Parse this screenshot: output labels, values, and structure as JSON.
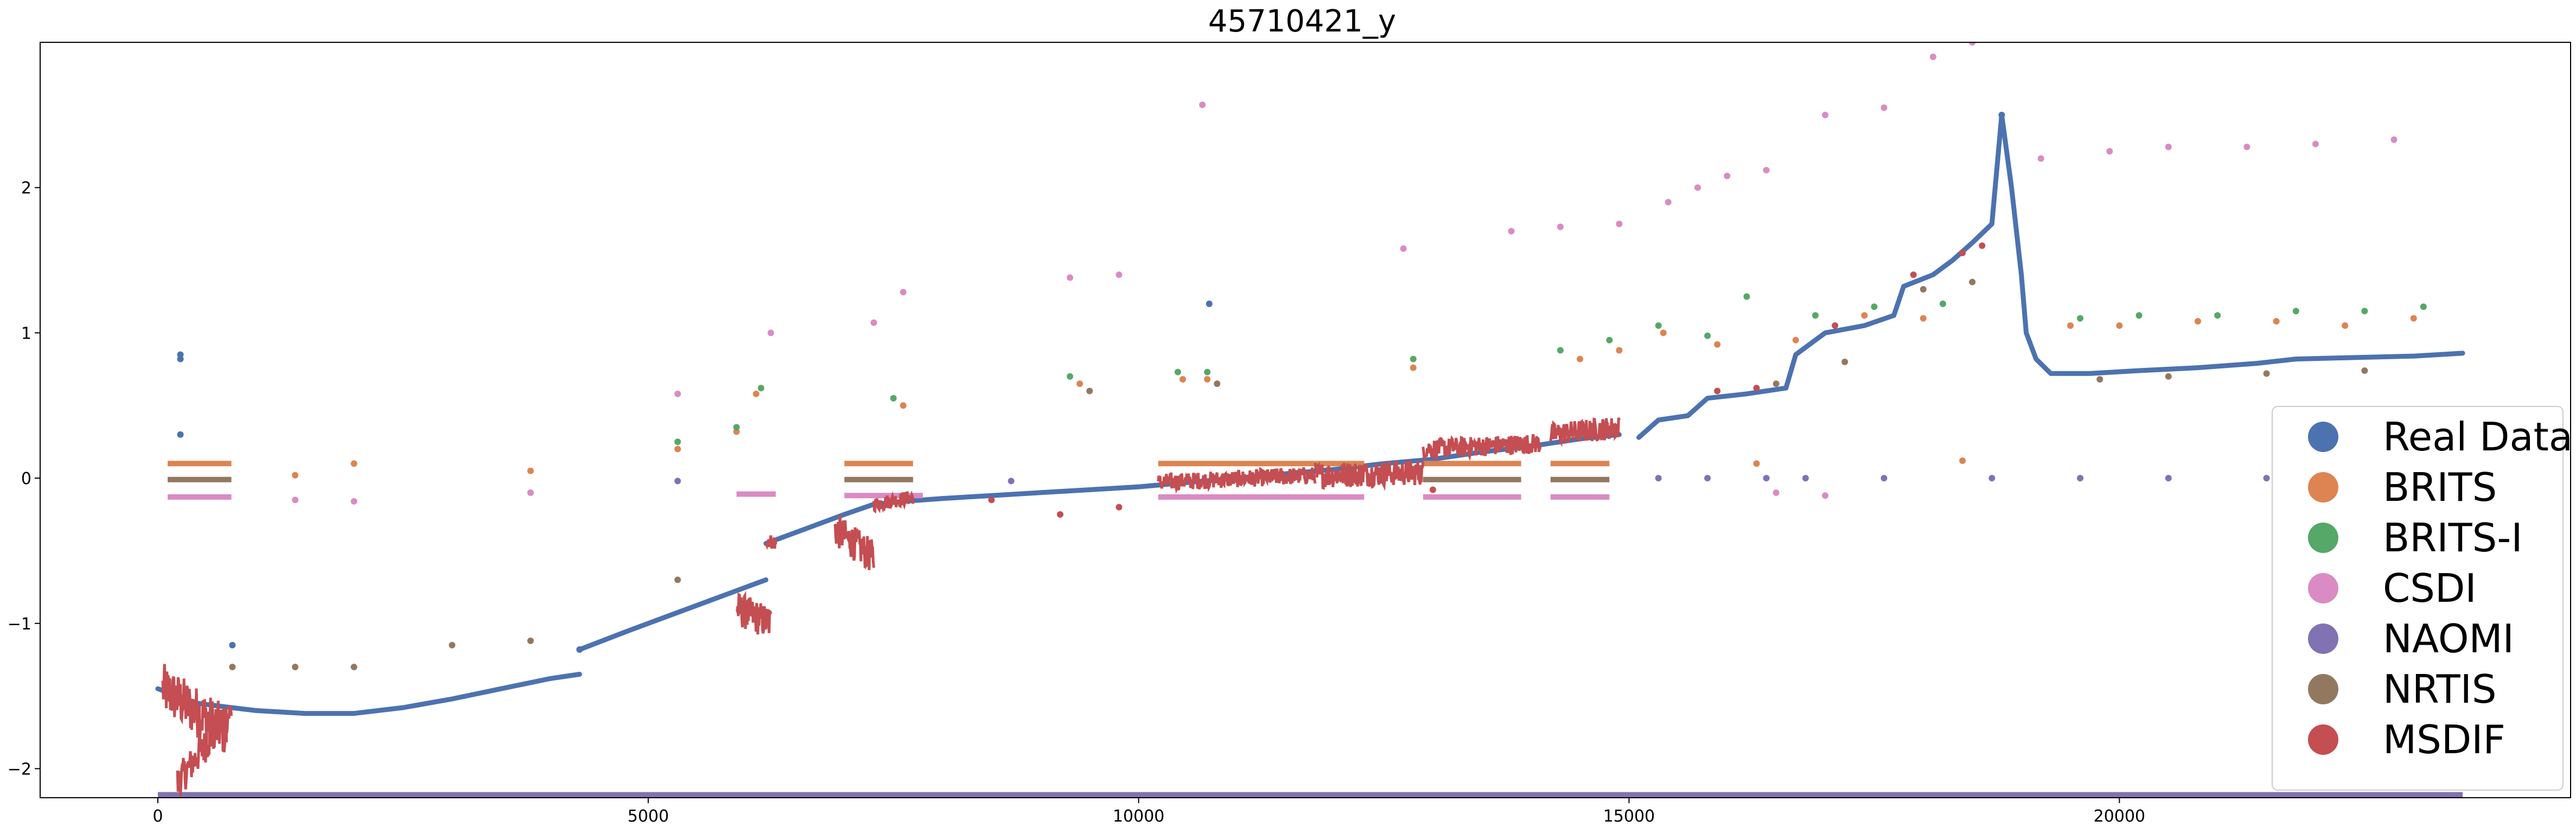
{
  "chart_data": {
    "type": "scatter",
    "title": "45710421_y",
    "xlabel": "",
    "ylabel": "",
    "xlim": [
      -1200,
      24600
    ],
    "ylim": [
      -2.2,
      3.0
    ],
    "x_ticks": [
      0,
      5000,
      10000,
      15000,
      20000
    ],
    "y_ticks": [
      -2,
      -1,
      0,
      1,
      2
    ],
    "x_tick_labels": [
      "0",
      "5000",
      "10000",
      "15000",
      "20000"
    ],
    "y_tick_labels": [
      "−2",
      "−1",
      "0",
      "1",
      "2"
    ],
    "grid": false,
    "legend_position": "lower right",
    "series": [
      {
        "name": "Real Data",
        "color": "#4c72b0",
        "segments": [
          [
            [
              0,
              -1.45
            ],
            [
              200,
              -1.5
            ],
            [
              400,
              -1.55
            ],
            [
              750,
              -1.58
            ],
            [
              1000,
              -1.6
            ],
            [
              1500,
              -1.62
            ],
            [
              2000,
              -1.62
            ],
            [
              2500,
              -1.58
            ],
            [
              3000,
              -1.52
            ],
            [
              3500,
              -1.45
            ],
            [
              4000,
              -1.38
            ],
            [
              4300,
              -1.35
            ]
          ],
          [
            [
              4300,
              -1.18
            ],
            [
              4800,
              -1.05
            ],
            [
              5200,
              -0.95
            ],
            [
              5600,
              -0.85
            ],
            [
              6000,
              -0.75
            ],
            [
              6200,
              -0.7
            ]
          ],
          [
            [
              6200,
              -0.45
            ],
            [
              6600,
              -0.35
            ],
            [
              7000,
              -0.25
            ],
            [
              7300,
              -0.18
            ],
            [
              7600,
              -0.16
            ],
            [
              8000,
              -0.14
            ],
            [
              8500,
              -0.12
            ],
            [
              9000,
              -0.1
            ],
            [
              9500,
              -0.08
            ],
            [
              10000,
              -0.06
            ],
            [
              10500,
              -0.03
            ],
            [
              11000,
              0.0
            ],
            [
              11500,
              0.03
            ],
            [
              12000,
              0.06
            ],
            [
              12500,
              0.1
            ],
            [
              13000,
              0.13
            ],
            [
              13500,
              0.18
            ],
            [
              14000,
              0.22
            ],
            [
              14500,
              0.27
            ],
            [
              14900,
              0.3
            ]
          ],
          [
            [
              15100,
              0.28
            ],
            [
              15300,
              0.4
            ],
            [
              15600,
              0.43
            ],
            [
              15800,
              0.55
            ],
            [
              16200,
              0.58
            ],
            [
              16600,
              0.62
            ],
            [
              16700,
              0.85
            ],
            [
              17000,
              1.0
            ],
            [
              17400,
              1.05
            ],
            [
              17700,
              1.12
            ],
            [
              17800,
              1.32
            ],
            [
              18100,
              1.4
            ],
            [
              18300,
              1.5
            ],
            [
              18500,
              1.62
            ],
            [
              18700,
              1.75
            ],
            [
              18800,
              2.5
            ],
            [
              18900,
              2.0
            ],
            [
              19000,
              1.4
            ],
            [
              19050,
              1.0
            ],
            [
              19150,
              0.82
            ],
            [
              19300,
              0.72
            ],
            [
              19700,
              0.72
            ],
            [
              20200,
              0.74
            ],
            [
              20800,
              0.76
            ],
            [
              21400,
              0.79
            ],
            [
              21800,
              0.82
            ],
            [
              22400,
              0.83
            ],
            [
              23000,
              0.84
            ],
            [
              23500,
              0.86
            ]
          ]
        ],
        "points": [
          [
            230,
            0.85
          ],
          [
            230,
            0.82
          ],
          [
            230,
            0.3
          ],
          [
            760,
            -1.15
          ],
          [
            4300,
            -1.18
          ],
          [
            10720,
            1.2
          ],
          [
            18800,
            2.5
          ]
        ]
      },
      {
        "name": "BRITS",
        "color": "#dd8452",
        "bands": [
          [
            100,
            750,
            0.1
          ],
          [
            7000,
            7700,
            0.1
          ],
          [
            10200,
            12300,
            0.1
          ],
          [
            12900,
            13900,
            0.1
          ],
          [
            14200,
            14800,
            0.1
          ]
        ],
        "points": [
          [
            5300,
            0.2
          ],
          [
            5900,
            0.32
          ],
          [
            6100,
            0.58
          ],
          [
            7600,
            0.5
          ],
          [
            9400,
            0.65
          ],
          [
            10450,
            0.68
          ],
          [
            10700,
            0.68
          ],
          [
            12800,
            0.76
          ],
          [
            14500,
            0.82
          ],
          [
            14900,
            0.88
          ],
          [
            15350,
            1.0
          ],
          [
            15900,
            0.92
          ],
          [
            16700,
            0.95
          ],
          [
            17400,
            1.12
          ],
          [
            18000,
            1.1
          ],
          [
            19500,
            1.05
          ],
          [
            20000,
            1.05
          ],
          [
            20800,
            1.08
          ],
          [
            21600,
            1.08
          ],
          [
            22300,
            1.05
          ],
          [
            23000,
            1.1
          ],
          [
            2000,
            0.1
          ],
          [
            3800,
            0.05
          ],
          [
            1400,
            0.02
          ],
          [
            16300,
            0.1
          ],
          [
            18400,
            0.12
          ]
        ]
      },
      {
        "name": "BRITS-I",
        "color": "#55a868",
        "bands": [],
        "points": [
          [
            5900,
            0.35
          ],
          [
            6150,
            0.62
          ],
          [
            7500,
            0.55
          ],
          [
            9300,
            0.7
          ],
          [
            10400,
            0.73
          ],
          [
            10700,
            0.73
          ],
          [
            12800,
            0.82
          ],
          [
            14300,
            0.88
          ],
          [
            14800,
            0.95
          ],
          [
            15300,
            1.05
          ],
          [
            15800,
            0.98
          ],
          [
            16200,
            1.25
          ],
          [
            16900,
            1.12
          ],
          [
            17500,
            1.18
          ],
          [
            18200,
            1.2
          ],
          [
            19600,
            1.1
          ],
          [
            20200,
            1.12
          ],
          [
            21000,
            1.12
          ],
          [
            21800,
            1.15
          ],
          [
            22500,
            1.15
          ],
          [
            23100,
            1.18
          ],
          [
            5300,
            0.25
          ]
        ]
      },
      {
        "name": "CSDI",
        "color": "#da8bc3",
        "bands": [
          [
            100,
            750,
            -0.13
          ],
          [
            5900,
            6300,
            -0.11
          ],
          [
            7000,
            7800,
            -0.12
          ],
          [
            10200,
            12300,
            -0.13
          ],
          [
            12900,
            13900,
            -0.13
          ],
          [
            14200,
            14800,
            -0.13
          ]
        ],
        "points": [
          [
            5300,
            0.58
          ],
          [
            6250,
            1.0
          ],
          [
            7300,
            1.07
          ],
          [
            7600,
            1.28
          ],
          [
            9300,
            1.38
          ],
          [
            9800,
            1.4
          ],
          [
            10650,
            2.57
          ],
          [
            12700,
            1.58
          ],
          [
            13800,
            1.7
          ],
          [
            14300,
            1.73
          ],
          [
            14900,
            1.75
          ],
          [
            15400,
            1.9
          ],
          [
            15700,
            2.0
          ],
          [
            16000,
            2.08
          ],
          [
            16400,
            2.12
          ],
          [
            17000,
            2.5
          ],
          [
            17600,
            2.55
          ],
          [
            18100,
            2.9
          ],
          [
            18500,
            3.0
          ],
          [
            19200,
            2.2
          ],
          [
            19900,
            2.25
          ],
          [
            20500,
            2.28
          ],
          [
            21300,
            2.28
          ],
          [
            22000,
            2.3
          ],
          [
            22800,
            2.33
          ],
          [
            2000,
            -0.16
          ],
          [
            3800,
            -0.1
          ],
          [
            1400,
            -0.15
          ],
          [
            16500,
            -0.1
          ],
          [
            17000,
            -0.12
          ]
        ]
      },
      {
        "name": "NAOMI",
        "color": "#8172b3",
        "bands": [
          [
            0,
            23500,
            -2.18
          ]
        ],
        "points": [
          [
            5300,
            -0.02
          ],
          [
            8700,
            -0.02
          ],
          [
            16800,
            0.0
          ],
          [
            17600,
            0.0
          ],
          [
            18700,
            0.0
          ],
          [
            19600,
            0.0
          ],
          [
            20500,
            0.0
          ],
          [
            21500,
            0.0
          ],
          [
            22000,
            0.0
          ],
          [
            16400,
            0.0
          ],
          [
            15800,
            0.0
          ],
          [
            15300,
            0.0
          ]
        ]
      },
      {
        "name": "NRTIS",
        "color": "#937860",
        "bands": [
          [
            100,
            750,
            -0.01
          ],
          [
            7000,
            7700,
            -0.01
          ],
          [
            12900,
            13900,
            -0.01
          ],
          [
            14200,
            14800,
            -0.01
          ]
        ],
        "points": [
          [
            5300,
            -0.7
          ],
          [
            2000,
            -1.3
          ],
          [
            3000,
            -1.15
          ],
          [
            3800,
            -1.12
          ],
          [
            1400,
            -1.3
          ],
          [
            760,
            -1.3
          ],
          [
            16500,
            0.65
          ],
          [
            17200,
            0.8
          ],
          [
            18000,
            1.3
          ],
          [
            18500,
            1.35
          ],
          [
            19800,
            0.68
          ],
          [
            20500,
            0.7
          ],
          [
            21500,
            0.72
          ],
          [
            22500,
            0.74
          ],
          [
            9500,
            0.6
          ],
          [
            10800,
            0.65
          ]
        ]
      },
      {
        "name": "MSDIF",
        "color": "#c44e52",
        "noisy": [
          {
            "x0": 50,
            "x1": 700,
            "y0": -1.45,
            "y1": -1.75,
            "amp": 0.18
          },
          {
            "x0": 200,
            "x1": 750,
            "y0": -2.1,
            "y1": -1.6,
            "amp": 0.12
          },
          {
            "x0": 5900,
            "x1": 6250,
            "y0": -0.9,
            "y1": -1.0,
            "amp": 0.12
          },
          {
            "x0": 6200,
            "x1": 6300,
            "y0": -0.42,
            "y1": -0.45,
            "amp": 0.05
          },
          {
            "x0": 6900,
            "x1": 7300,
            "y0": -0.35,
            "y1": -0.55,
            "amp": 0.12
          },
          {
            "x0": 7300,
            "x1": 7700,
            "y0": -0.18,
            "y1": -0.13,
            "amp": 0.05
          },
          {
            "x0": 10200,
            "x1": 11800,
            "y0": -0.03,
            "y1": 0.02,
            "amp": 0.06
          },
          {
            "x0": 11800,
            "x1": 12900,
            "y0": 0.02,
            "y1": 0.04,
            "amp": 0.09
          },
          {
            "x0": 12900,
            "x1": 14100,
            "y0": 0.2,
            "y1": 0.24,
            "amp": 0.07
          },
          {
            "x0": 14200,
            "x1": 14900,
            "y0": 0.3,
            "y1": 0.35,
            "amp": 0.08
          }
        ],
        "points": [
          [
            8500,
            -0.15
          ],
          [
            9800,
            -0.2
          ],
          [
            9200,
            -0.25
          ],
          [
            13000,
            -0.08
          ],
          [
            17900,
            1.4
          ],
          [
            18400,
            1.55
          ],
          [
            18600,
            1.6
          ],
          [
            16300,
            0.62
          ],
          [
            15900,
            0.6
          ],
          [
            17100,
            1.05
          ],
          [
            12700,
            0.02
          ]
        ]
      }
    ]
  }
}
